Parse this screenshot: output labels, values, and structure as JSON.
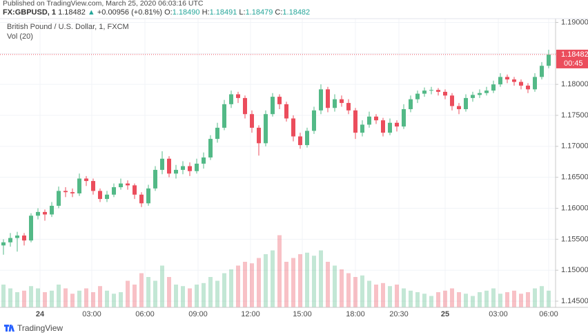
{
  "header": {
    "published": "Published on TradingView.com, March 25, 2020 06:03:16 UTC",
    "symbol": "FX:GBPUSD, 1",
    "last": "1.18482",
    "arrow": "▲",
    "change": "+0.00956 (+0.81%)",
    "o_label": "O:",
    "o": "1.18490",
    "h_label": "H:",
    "h": "1.18491",
    "l_label": "L:",
    "l": "1.18479",
    "c_label": "C:",
    "c": "1.18482"
  },
  "chart_data": {
    "type": "candlestick",
    "title": "British Pound / U.S. Dollar, 1, FXCM",
    "indicator": "Vol (20)",
    "up_color": "#53b987",
    "down_color": "#eb4d5c",
    "grid": true,
    "xlim": [
      -0.5,
      79.5
    ],
    "xticks": [
      {
        "value": 5.3,
        "label": "24"
      },
      {
        "value": 12.8,
        "label": "03:00"
      },
      {
        "value": 20.5,
        "label": "06:00"
      },
      {
        "value": 28.2,
        "label": "09:00"
      },
      {
        "value": 35.8,
        "label": "12:00"
      },
      {
        "value": 43.3,
        "label": "15:00"
      },
      {
        "value": 51,
        "label": "18:00"
      },
      {
        "value": 57.3,
        "label": "20:30"
      },
      {
        "value": 64,
        "label": "25"
      },
      {
        "value": 71.7,
        "label": "03:00"
      },
      {
        "value": 79,
        "label": "06:00"
      }
    ],
    "ylim": [
      1.144,
      1.1905
    ],
    "yticks": [
      {
        "value": 1.19,
        "label": "1.19000"
      },
      {
        "value": 1.185,
        "label": "1.18500"
      },
      {
        "value": 1.18,
        "label": "1.18000"
      },
      {
        "value": 1.175,
        "label": "1.17500"
      },
      {
        "value": 1.17,
        "label": "1.17000"
      },
      {
        "value": 1.165,
        "label": "1.16500"
      },
      {
        "value": 1.16,
        "label": "1.16000"
      },
      {
        "value": 1.155,
        "label": "1.15500"
      },
      {
        "value": 1.15,
        "label": "1.15000"
      },
      {
        "value": 1.145,
        "label": "1.14500"
      }
    ],
    "last_price": {
      "value": 1.18482,
      "label": "1.18482"
    },
    "countdown": "00:45",
    "open": [
      1.154,
      1.1545,
      1.1552,
      1.1556,
      1.1548,
      1.1588,
      1.1594,
      1.159,
      1.1604,
      1.1628,
      1.1626,
      1.1624,
      1.1648,
      1.1644,
      1.1628,
      1.1615,
      1.1622,
      1.1634,
      1.164,
      1.1637,
      1.1622,
      1.1608,
      1.1632,
      1.1662,
      1.168,
      1.1656,
      1.1662,
      1.1668,
      1.166,
      1.1672,
      1.1682,
      1.1712,
      1.173,
      1.1768,
      1.1784,
      1.1778,
      1.1752,
      1.173,
      1.1705,
      1.1752,
      1.178,
      1.1768,
      1.1745,
      1.1716,
      1.1702,
      1.1725,
      1.1758,
      1.1792,
      1.1762,
      1.1776,
      1.177,
      1.1758,
      1.1722,
      1.1735,
      1.1748,
      1.1742,
      1.1722,
      1.1738,
      1.1732,
      1.176,
      1.1776,
      1.1785,
      1.179,
      1.1791,
      1.1788,
      1.1782,
      1.1765,
      1.176,
      1.1778,
      1.1783,
      1.1786,
      1.179,
      1.18,
      1.1812,
      1.1808,
      1.1804,
      1.1798,
      1.1792,
      1.1812,
      1.183
    ],
    "high": [
      1.155,
      1.156,
      1.1562,
      1.156,
      1.1592,
      1.16,
      1.1598,
      1.161,
      1.1635,
      1.1634,
      1.1632,
      1.1656,
      1.1652,
      1.1648,
      1.1632,
      1.1628,
      1.164,
      1.1648,
      1.1645,
      1.164,
      1.1626,
      1.1638,
      1.1668,
      1.1692,
      1.1684,
      1.167,
      1.1676,
      1.1674,
      1.168,
      1.169,
      1.1718,
      1.1738,
      1.1775,
      1.179,
      1.1788,
      1.1782,
      1.1758,
      1.1734,
      1.1758,
      1.1786,
      1.1784,
      1.1772,
      1.175,
      1.1722,
      1.173,
      1.1764,
      1.18,
      1.1796,
      1.1784,
      1.1782,
      1.1776,
      1.1762,
      1.1742,
      1.1756,
      1.1752,
      1.1746,
      1.1745,
      1.1742,
      1.1768,
      1.1782,
      1.179,
      1.1795,
      1.1796,
      1.1794,
      1.1792,
      1.1786,
      1.177,
      1.1784,
      1.1788,
      1.1792,
      1.1796,
      1.1806,
      1.1818,
      1.1816,
      1.1812,
      1.1808,
      1.1802,
      1.1818,
      1.1836,
      1.1856
    ],
    "low": [
      1.1525,
      1.1538,
      1.153,
      1.154,
      1.1545,
      1.1582,
      1.158,
      1.1586,
      1.16,
      1.1618,
      1.1618,
      1.162,
      1.1636,
      1.1622,
      1.161,
      1.161,
      1.1618,
      1.163,
      1.163,
      1.1615,
      1.1602,
      1.1604,
      1.1628,
      1.1655,
      1.165,
      1.1648,
      1.1655,
      1.1652,
      1.1656,
      1.1664,
      1.1678,
      1.1706,
      1.1726,
      1.1762,
      1.177,
      1.1745,
      1.1722,
      1.1685,
      1.17,
      1.1748,
      1.176,
      1.174,
      1.1708,
      1.1696,
      1.1698,
      1.172,
      1.1752,
      1.1755,
      1.1756,
      1.1764,
      1.1752,
      1.1712,
      1.1716,
      1.173,
      1.1736,
      1.1716,
      1.1718,
      1.1724,
      1.1728,
      1.1755,
      1.177,
      1.178,
      1.1784,
      1.1782,
      1.1776,
      1.1758,
      1.1752,
      1.1756,
      1.1772,
      1.1778,
      1.1782,
      1.1786,
      1.1796,
      1.1802,
      1.1798,
      1.1792,
      1.1786,
      1.1788,
      1.1808,
      1.1826
    ],
    "close": [
      1.1545,
      1.1552,
      1.1556,
      1.1548,
      1.1588,
      1.1594,
      1.159,
      1.1604,
      1.1628,
      1.1626,
      1.1624,
      1.1648,
      1.1644,
      1.1628,
      1.1615,
      1.1622,
      1.1634,
      1.164,
      1.1637,
      1.1622,
      1.1608,
      1.1632,
      1.1662,
      1.168,
      1.1656,
      1.1662,
      1.1668,
      1.166,
      1.1672,
      1.1682,
      1.1712,
      1.173,
      1.1768,
      1.1784,
      1.1778,
      1.1752,
      1.173,
      1.1705,
      1.1752,
      1.178,
      1.1768,
      1.1745,
      1.1716,
      1.1702,
      1.1725,
      1.1758,
      1.1792,
      1.1762,
      1.1776,
      1.177,
      1.1758,
      1.1722,
      1.1735,
      1.1748,
      1.1742,
      1.1722,
      1.1738,
      1.1732,
      1.176,
      1.1776,
      1.1785,
      1.179,
      1.1791,
      1.1788,
      1.1782,
      1.1765,
      1.176,
      1.1778,
      1.1783,
      1.1786,
      1.179,
      1.18,
      1.1812,
      1.1808,
      1.1804,
      1.1798,
      1.1792,
      1.1812,
      1.183,
      1.1848
    ],
    "volume": {
      "ylim": [
        0,
        100
      ],
      "values": [
        30,
        25,
        20,
        22,
        28,
        25,
        20,
        22,
        30,
        25,
        18,
        22,
        25,
        20,
        28,
        22,
        18,
        20,
        35,
        30,
        45,
        40,
        35,
        55,
        40,
        30,
        28,
        25,
        30,
        32,
        40,
        35,
        45,
        50,
        55,
        60,
        58,
        65,
        70,
        75,
        95,
        60,
        65,
        70,
        72,
        68,
        75,
        60,
        55,
        50,
        45,
        40,
        42,
        35,
        30,
        32,
        28,
        30,
        25,
        22,
        20,
        18,
        15,
        20,
        22,
        25,
        20,
        18,
        15,
        20,
        22,
        25,
        18,
        20,
        22,
        18,
        20,
        25,
        28,
        22
      ]
    }
  },
  "footer": {
    "brand": "TradingView"
  }
}
